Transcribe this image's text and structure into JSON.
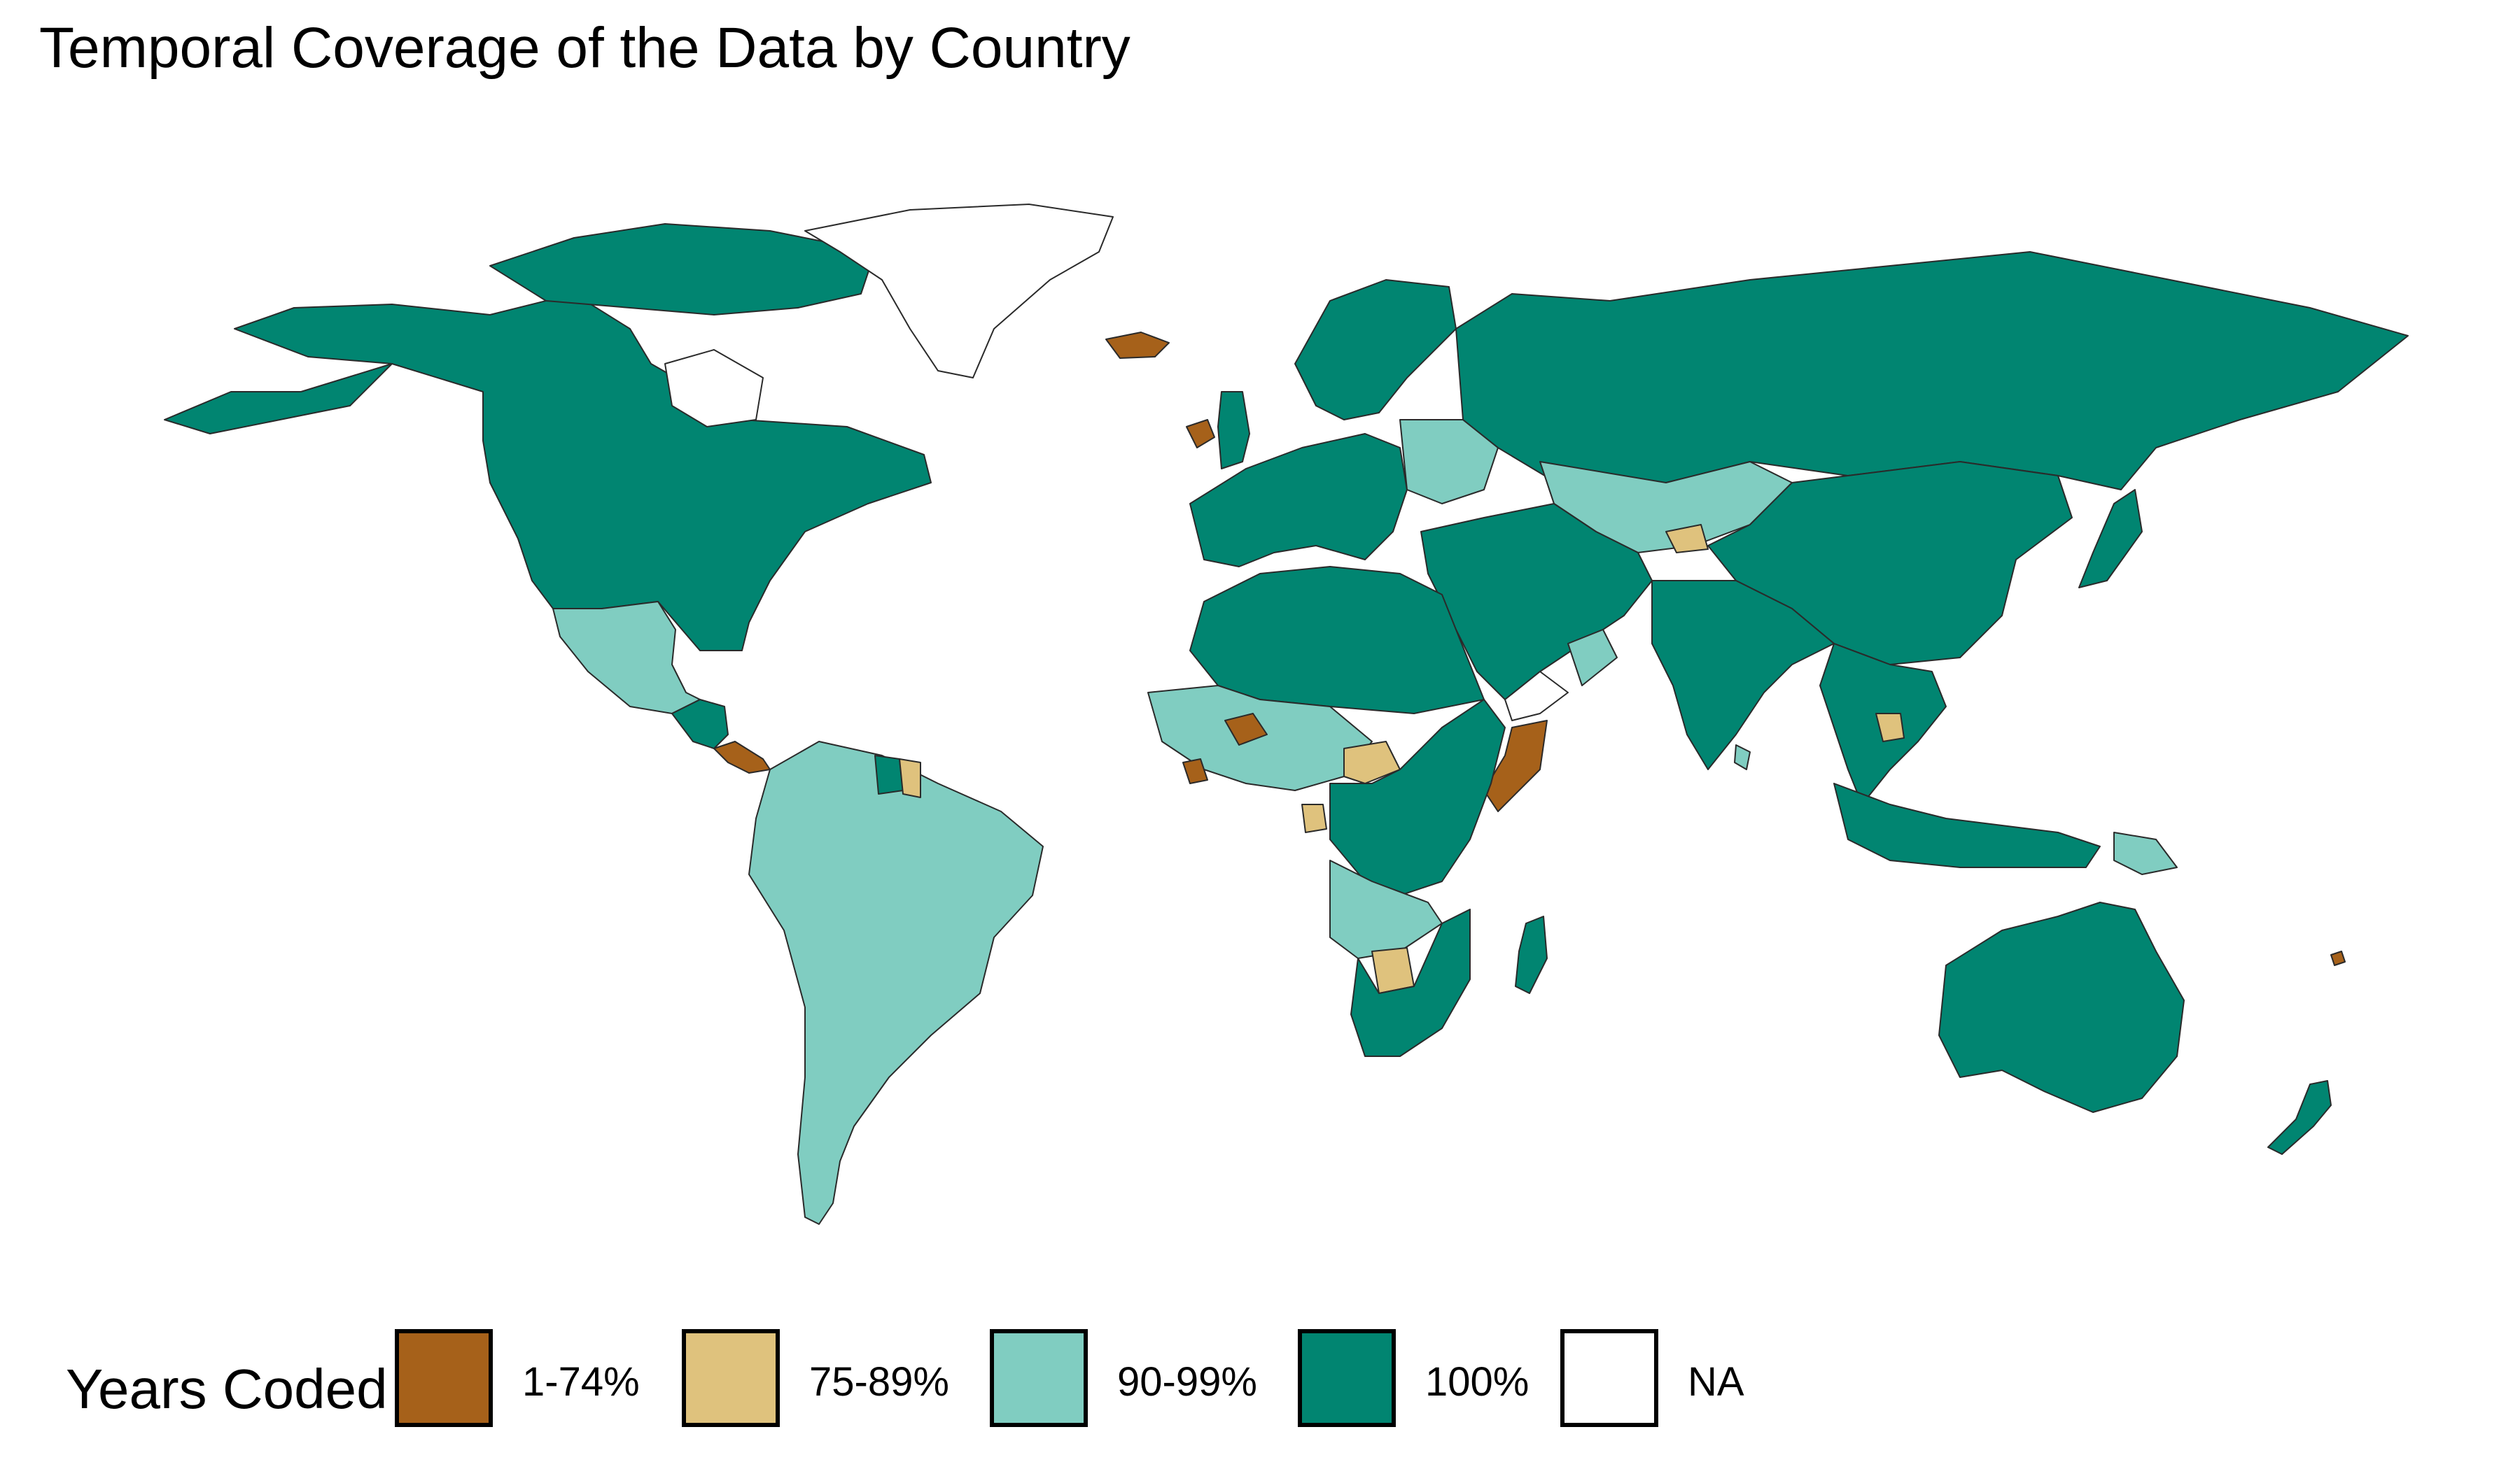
{
  "title": "Temporal Coverage of the Data by Country",
  "legend": {
    "title": "Years Coded",
    "items": [
      {
        "label": "1-74%",
        "color": "#a6611a"
      },
      {
        "label": "75-89%",
        "color": "#dfc27d"
      },
      {
        "label": "90-99%",
        "color": "#80cdc1"
      },
      {
        "label": "100%",
        "color": "#018571"
      },
      {
        "label": "NA",
        "color": "#ffffff"
      }
    ]
  },
  "regions": [
    {
      "name": "North America",
      "category": "100%"
    },
    {
      "name": "Alaska",
      "category": "100%"
    },
    {
      "name": "Canadian Arctic Islands",
      "category": "100%"
    },
    {
      "name": "Greenland",
      "category": "NA"
    },
    {
      "name": "Iceland",
      "category": "1-74%"
    },
    {
      "name": "Ireland",
      "category": "1-74%"
    },
    {
      "name": "Great Britain",
      "category": "100%"
    },
    {
      "name": "Scandinavia",
      "category": "100%"
    },
    {
      "name": "Western Europe",
      "category": "100%"
    },
    {
      "name": "Eastern Europe",
      "category": "90-99%"
    },
    {
      "name": "Russia",
      "category": "100%"
    },
    {
      "name": "Central Asia",
      "category": "90-99%"
    },
    {
      "name": "Tajikistan",
      "category": "75-89%"
    },
    {
      "name": "China & Mongolia",
      "category": "100%"
    },
    {
      "name": "Japan",
      "category": "100%"
    },
    {
      "name": "Middle East",
      "category": "100%"
    },
    {
      "name": "Oman",
      "category": "90-99%"
    },
    {
      "name": "Yemen",
      "category": "NA"
    },
    {
      "name": "India",
      "category": "100%"
    },
    {
      "name": "Sri Lanka",
      "category": "90-99%"
    },
    {
      "name": "Southeast Asia",
      "category": "100%"
    },
    {
      "name": "Cambodia",
      "category": "75-89%"
    },
    {
      "name": "Indonesia",
      "category": "100%"
    },
    {
      "name": "Papua New Guinea",
      "category": "90-99%"
    },
    {
      "name": "Australia",
      "category": "100%"
    },
    {
      "name": "New Zealand",
      "category": "100%"
    },
    {
      "name": "Mexico",
      "category": "90-99%"
    },
    {
      "name": "Central America",
      "category": "100%"
    },
    {
      "name": "Costa Rica / Panama",
      "category": "1-74%"
    },
    {
      "name": "South America",
      "category": "90-99%"
    },
    {
      "name": "Guyana",
      "category": "100%"
    },
    {
      "name": "Suriname",
      "category": "75-89%"
    },
    {
      "name": "North Africa",
      "category": "100%"
    },
    {
      "name": "West Africa",
      "category": "90-99%"
    },
    {
      "name": "Burkina Faso",
      "category": "1-74%"
    },
    {
      "name": "Liberia",
      "category": "1-74%"
    },
    {
      "name": "Central African Republic",
      "category": "75-89%"
    },
    {
      "name": "Gabon",
      "category": "75-89%"
    },
    {
      "name": "Somalia",
      "category": "1-74%"
    },
    {
      "name": "Central Africa",
      "category": "100%"
    },
    {
      "name": "Angola & Zambia",
      "category": "90-99%"
    },
    {
      "name": "Botswana",
      "category": "75-89%"
    },
    {
      "name": "Southern Africa",
      "category": "100%"
    },
    {
      "name": "Madagascar",
      "category": "100%"
    },
    {
      "name": "Fiji",
      "category": "1-74%"
    }
  ]
}
